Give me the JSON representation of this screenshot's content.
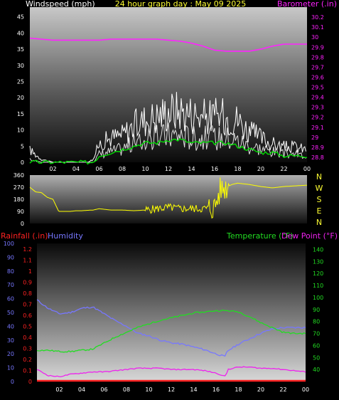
{
  "colors": {
    "windspeed": "#ffffff",
    "windgust": "#ffffff",
    "windavg": "#00dd00",
    "barometer": "#ff22ff",
    "direction": "#ffff00",
    "rainfall": "#ff2222",
    "humidity": "#7777ff",
    "temperature": "#22dd22",
    "dewpoint": "#ee22ee",
    "top_title": "#ffff33",
    "compass": "#ffff33"
  },
  "chart_data": [
    {
      "type": "line",
      "title": "24 hour graph day : May 09 2025",
      "left_axis_label": "Windspeed (mph)",
      "right_axis_label": "Barometer (.in)",
      "x_ticks": [
        "02",
        "04",
        "06",
        "08",
        "10",
        "12",
        "14",
        "16",
        "18",
        "20",
        "22",
        "00"
      ],
      "left_ticks": [
        "0",
        "5",
        "10",
        "15",
        "20",
        "25",
        "30",
        "35",
        "40",
        "45"
      ],
      "right_ticks": [
        "28.8",
        "28.9",
        "29",
        "29.1",
        "29.2",
        "29.3",
        "29.4",
        "29.5",
        "29.6",
        "29.7",
        "29.8",
        "29.9",
        "30",
        "30.1",
        "30.2"
      ],
      "left_ylim": [
        0,
        48
      ],
      "right_ylim": [
        28.75,
        30.3
      ],
      "x_range_hours": [
        0,
        24
      ],
      "series": [
        {
          "key": "gust",
          "axis": "left",
          "hours": [
            0,
            1,
            2,
            3,
            4,
            5,
            5.5,
            6,
            7,
            8,
            9,
            10,
            11,
            12,
            13,
            14,
            15,
            16,
            17,
            18,
            19,
            20,
            21,
            22,
            23,
            24
          ],
          "values": [
            4,
            1,
            0,
            0,
            0,
            0,
            1,
            6,
            8,
            9,
            12,
            14,
            15,
            17,
            17,
            16,
            15,
            15,
            15,
            14,
            10,
            8,
            6,
            5,
            5,
            4
          ]
        },
        {
          "key": "speed",
          "axis": "left",
          "hours": [
            0,
            1,
            2,
            3,
            4,
            5,
            5.5,
            6,
            7,
            8,
            9,
            10,
            11,
            12,
            13,
            14,
            15,
            16,
            17,
            18,
            19,
            20,
            21,
            22,
            23,
            24
          ],
          "values": [
            1,
            0,
            0,
            0,
            0,
            0,
            0,
            3,
            4,
            5,
            7,
            8,
            9,
            10,
            10,
            9,
            9,
            9,
            9,
            8,
            6,
            5,
            4,
            3,
            3,
            2
          ]
        },
        {
          "key": "avg",
          "axis": "left",
          "hours": [
            0,
            1,
            2,
            3,
            4,
            5,
            5.5,
            6,
            7,
            8,
            9,
            10,
            11,
            12,
            13,
            14,
            15,
            16,
            17,
            18,
            19,
            20,
            21,
            22,
            23,
            24
          ],
          "values": [
            0,
            0,
            0,
            0,
            0,
            0,
            0,
            2,
            3,
            4,
            5,
            6,
            6,
            7,
            7,
            6,
            6,
            6,
            6,
            5,
            4,
            3,
            3,
            2,
            2,
            2
          ]
        },
        {
          "key": "barometer",
          "axis": "right",
          "hours": [
            0,
            1,
            2,
            3,
            4,
            5,
            6,
            7,
            8,
            9,
            10,
            11,
            12,
            13,
            14,
            15,
            16,
            17,
            18,
            19,
            20,
            21,
            22,
            23,
            24
          ],
          "values": [
            29.99,
            29.98,
            29.97,
            29.97,
            29.97,
            29.97,
            29.97,
            29.98,
            29.98,
            29.98,
            29.98,
            29.98,
            29.97,
            29.96,
            29.94,
            29.91,
            29.87,
            29.86,
            29.86,
            29.86,
            29.88,
            29.91,
            29.93,
            29.93,
            29.93
          ]
        }
      ]
    },
    {
      "type": "scatter",
      "left_ticks": [
        "0",
        "90",
        "180",
        "270",
        "360"
      ],
      "compass": [
        "N",
        "W",
        "S",
        "E",
        "N"
      ],
      "ylim": [
        0,
        360
      ],
      "x_range_hours": [
        0,
        24
      ],
      "series": [
        {
          "key": "direction",
          "hours": [
            0,
            0.5,
            1,
            1.5,
            2,
            2.5,
            3,
            3.5,
            4,
            4.5,
            5,
            5.5,
            6,
            7,
            8,
            9,
            10,
            11,
            12,
            13,
            14,
            15,
            16,
            16.5,
            17,
            17.5,
            18,
            19,
            20,
            21,
            22,
            23,
            24
          ],
          "values": [
            270,
            235,
            230,
            195,
            180,
            90,
            90,
            90,
            95,
            95,
            98,
            100,
            110,
            100,
            100,
            95,
            100,
            110,
            120,
            110,
            110,
            110,
            120,
            250,
            270,
            290,
            300,
            290,
            275,
            265,
            275,
            280,
            285
          ]
        }
      ]
    },
    {
      "type": "line",
      "rain_label": "Rainfall (.in)",
      "humidity_label": "Humidity",
      "temperature_label": "Temperature (°F)",
      "dewpoint_label": "Dew Point (°F)",
      "x_ticks": [
        "02",
        "04",
        "06",
        "08",
        "10",
        "12",
        "14",
        "16",
        "18",
        "20",
        "22",
        "00"
      ],
      "humidity_ticks": [
        "0",
        "10",
        "20",
        "30",
        "40",
        "50",
        "60",
        "70",
        "80",
        "90",
        "100"
      ],
      "rain_ticks": [
        "0",
        "0.1",
        "0.2",
        "0.3",
        "0.4",
        "0.5",
        "0.6",
        "0.7",
        "0.8",
        "0.9",
        "1",
        "1.1",
        "1.2"
      ],
      "temp_ticks": [
        "40",
        "50",
        "60",
        "70",
        "80",
        "90",
        "100",
        "110",
        "120",
        "130",
        "140"
      ],
      "humidity_ylim": [
        0,
        100
      ],
      "temp_ylim": [
        30,
        145
      ],
      "x_range_hours": [
        0,
        24
      ],
      "series": [
        {
          "key": "humidity",
          "hours": [
            0,
            1,
            2,
            3,
            4,
            5,
            6,
            7,
            8,
            9,
            10,
            11,
            12,
            13,
            14,
            15,
            16,
            16.8,
            17,
            18,
            19,
            20,
            21,
            22,
            23,
            24
          ],
          "values": [
            59,
            53,
            49,
            50,
            53,
            54,
            49,
            44,
            40,
            35,
            33,
            30,
            28,
            27,
            25,
            23,
            20,
            18,
            22,
            27,
            31,
            35,
            38,
            39,
            39,
            39
          ]
        },
        {
          "key": "temperature",
          "hours": [
            0,
            1,
            2,
            3,
            4,
            5,
            6,
            7,
            8,
            9,
            10,
            11,
            12,
            13,
            14,
            15,
            16,
            17,
            18,
            19,
            20,
            21,
            22,
            23,
            24
          ],
          "values": [
            56,
            56,
            55,
            55,
            56,
            57,
            62,
            67,
            71,
            75,
            78,
            81,
            83,
            85,
            87,
            88,
            89,
            89,
            88,
            84,
            79,
            75,
            71,
            70,
            70
          ]
        },
        {
          "key": "dewpoint",
          "hours": [
            0,
            1,
            2,
            3,
            4,
            5,
            6,
            7,
            8,
            9,
            10,
            11,
            12,
            13,
            14,
            15,
            16,
            16.9,
            17,
            18,
            19,
            20,
            21,
            22,
            23,
            24
          ],
          "values": [
            40,
            35,
            34,
            36,
            37,
            38,
            38,
            39,
            40,
            41,
            41,
            41,
            40,
            40,
            40,
            39,
            37,
            34,
            40,
            42,
            42,
            41,
            41,
            40,
            39,
            38
          ]
        },
        {
          "key": "rain",
          "hours": [
            0,
            24
          ],
          "values": [
            0,
            0
          ]
        }
      ]
    }
  ]
}
